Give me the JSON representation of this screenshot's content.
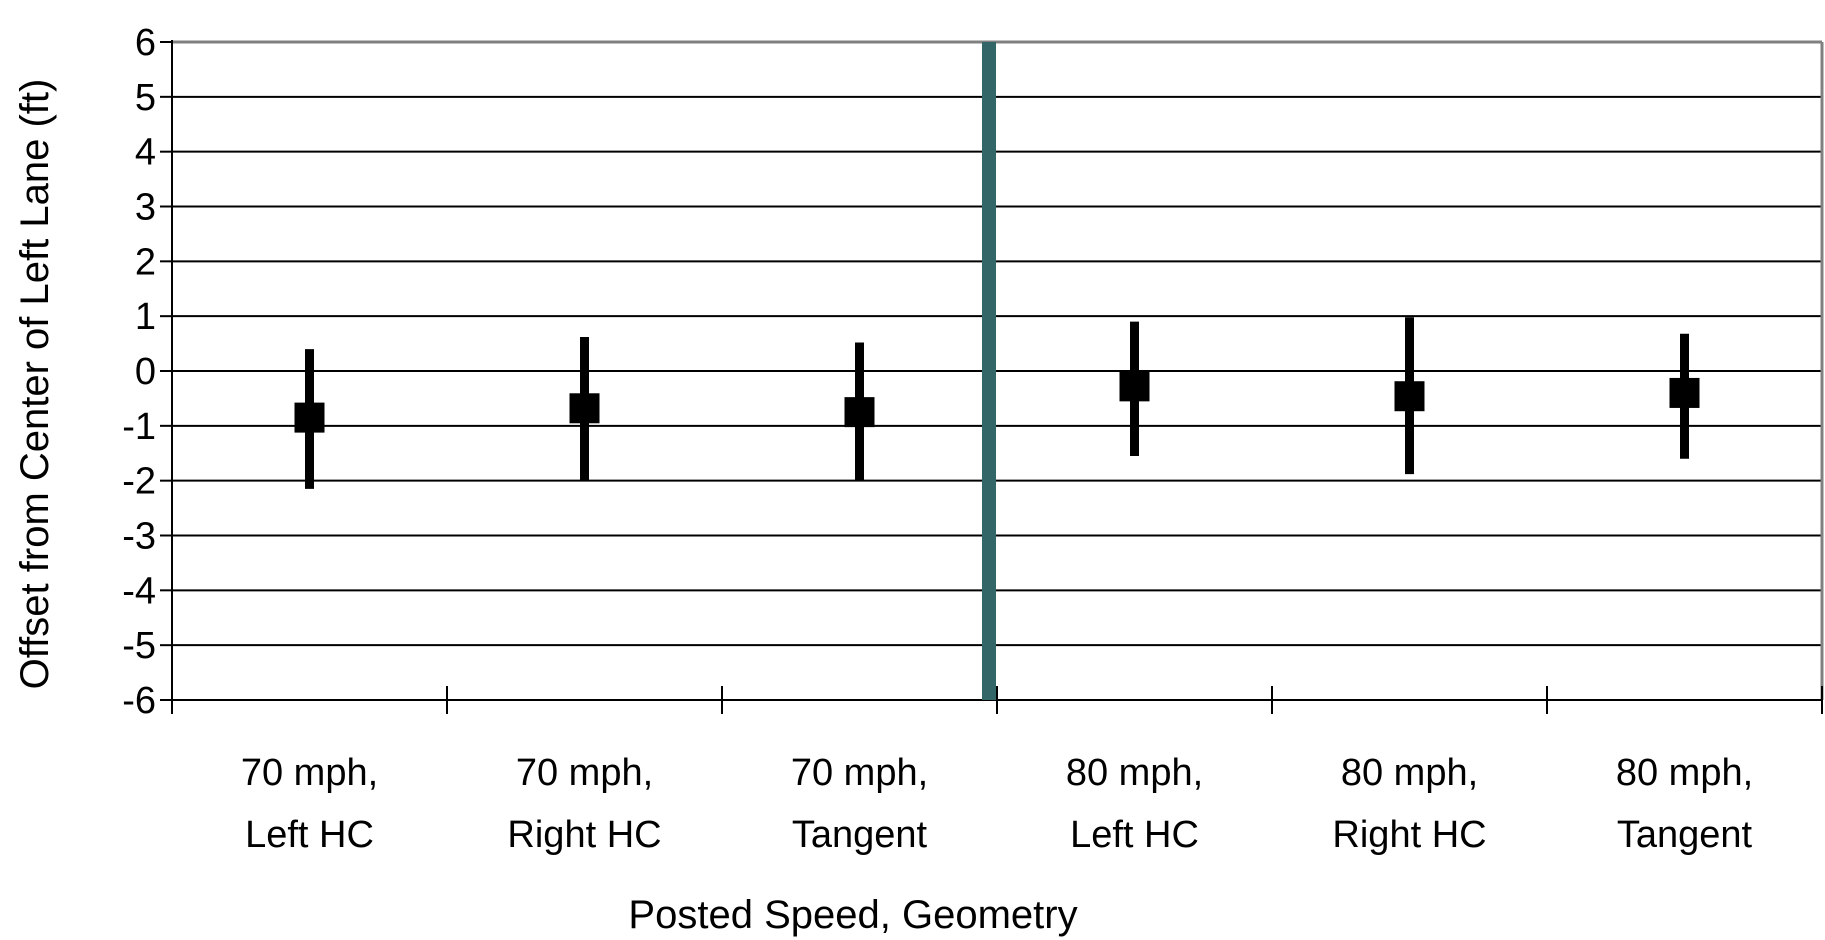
{
  "chart_data": {
    "type": "scatter",
    "title": "",
    "xlabel": "Posted Speed, Geometry",
    "ylabel": "Offset from Center of Left Lane (ft)",
    "ylim": [
      -6,
      6
    ],
    "yticks": [
      "6",
      "5",
      "4",
      "3",
      "2",
      "1",
      "0",
      "-1",
      "-2",
      "-3",
      "-4",
      "-5",
      "-6"
    ],
    "grid": true,
    "categories": [
      [
        "70 mph,",
        "Left HC"
      ],
      [
        "70 mph,",
        "Right HC"
      ],
      [
        "70 mph,",
        "Tangent"
      ],
      [
        "80 mph,",
        "Left HC"
      ],
      [
        "80 mph,",
        "Right HC"
      ],
      [
        "80 mph,",
        "Tangent"
      ]
    ],
    "series": [
      {
        "values": [
          -0.85,
          -0.68,
          -0.75,
          -0.28,
          -0.46,
          -0.4
        ],
        "error_high": [
          0.4,
          0.62,
          0.52,
          0.9,
          0.98,
          0.68
        ],
        "error_low": [
          -2.15,
          -2.0,
          -2.0,
          -1.55,
          -1.88,
          -1.6
        ]
      }
    ],
    "divider_after_category": 3,
    "colors": {
      "marker": "#000000",
      "grid": "#000000",
      "divider": "#336666",
      "frame": "#808080"
    }
  }
}
